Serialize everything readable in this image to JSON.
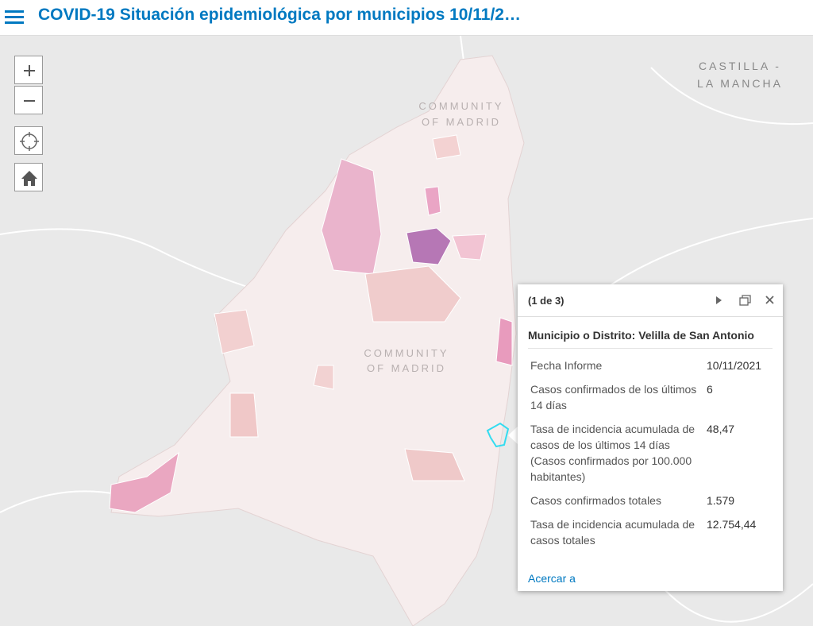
{
  "header": {
    "title": "COVID-19 Situación epidemiológica por municipios 10/11/2…"
  },
  "map": {
    "region_labels": [
      {
        "lines": [
          "CASTILLA -",
          "LA MANCHA"
        ]
      },
      {
        "lines": [
          "COMMUNITY",
          "OF MADRID"
        ]
      },
      {
        "lines": [
          "COMMUNITY",
          "OF MADRID"
        ]
      }
    ]
  },
  "popup": {
    "pager": "(1 de 3)",
    "title": "Municipio o Distrito: Velilla de San Antonio",
    "fields": [
      {
        "label": "Fecha Informe",
        "value": "10/11/2021"
      },
      {
        "label": "Casos confirmados de los últimos 14 días",
        "value": "6"
      },
      {
        "label": "Tasa de incidencia acumulada de casos de los últimos 14 días (Casos confirmados por 100.000 habitantes)",
        "value": "48,47"
      },
      {
        "label": "Casos confirmados totales",
        "value": "1.579"
      },
      {
        "label": "Tasa de incidencia acumulada de casos totales",
        "value": "12.754,44"
      }
    ],
    "link": "Acercar a"
  }
}
